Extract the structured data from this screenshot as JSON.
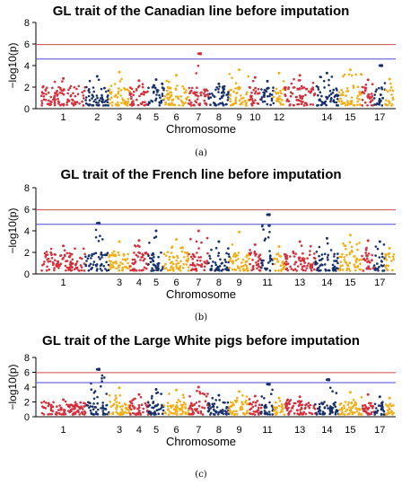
{
  "chart_data": [
    {
      "type": "scatter",
      "title": "GL trait of the Canadian line before imputation",
      "xlabel": "Chromosome",
      "ylabel": "−log10(p)",
      "caption": "(a)",
      "ylim": [
        0,
        8
      ],
      "yticks": [
        "0",
        "2",
        "4",
        "6",
        "8"
      ],
      "thresholds": [
        {
          "value": 5.95,
          "color": "#cc4a4a"
        },
        {
          "value": 4.6,
          "color": "#4a4acc"
        }
      ],
      "chromosome_labels": [
        "1",
        "2",
        "3",
        "4",
        "5",
        "6",
        "7",
        "8",
        "9",
        "10",
        "12",
        "14",
        "15",
        "17"
      ],
      "series": [
        {
          "chromosome": "1",
          "max": 2.8
        },
        {
          "chromosome": "2",
          "max": 3.0
        },
        {
          "chromosome": "3",
          "max": 3.4
        },
        {
          "chromosome": "4",
          "max": 2.6
        },
        {
          "chromosome": "5",
          "max": 2.7
        },
        {
          "chromosome": "6",
          "max": 3.1
        },
        {
          "chromosome": "7",
          "max": 5.1
        },
        {
          "chromosome": "8",
          "max": 2.3
        },
        {
          "chromosome": "9",
          "max": 3.6
        },
        {
          "chromosome": "10",
          "max": 2.9
        },
        {
          "chromosome": "12",
          "max": 3.3
        },
        {
          "chromosome": "14",
          "max": 3.3
        },
        {
          "chromosome": "15",
          "max": 3.6
        },
        {
          "chromosome": "17",
          "max": 4.0
        }
      ],
      "highlights": [
        {
          "chromosome": "7",
          "y": 5.1
        },
        {
          "chromosome": "17",
          "y": 4.0
        }
      ]
    },
    {
      "type": "scatter",
      "title": "GL trait of the French line before imputation",
      "xlabel": "Chromosome",
      "ylabel": "−log10(p)",
      "caption": "(b)",
      "ylim": [
        0,
        8
      ],
      "yticks": [
        "0",
        "2",
        "4",
        "6",
        "8"
      ],
      "thresholds": [
        {
          "value": 5.95,
          "color": "#cc4a4a"
        },
        {
          "value": 4.6,
          "color": "#4a4acc"
        }
      ],
      "chromosome_labels": [
        "1",
        "3",
        "4",
        "5",
        "6",
        "7",
        "8",
        "9",
        "11",
        "13",
        "14",
        "15",
        "17"
      ],
      "series": [
        {
          "chromosome": "1",
          "max": 2.6
        },
        {
          "chromosome": "2",
          "max": 4.7
        },
        {
          "chromosome": "3",
          "max": 3.0
        },
        {
          "chromosome": "4",
          "max": 3.1
        },
        {
          "chromosome": "5",
          "max": 4.0
        },
        {
          "chromosome": "6",
          "max": 3.2
        },
        {
          "chromosome": "7",
          "max": 4.0
        },
        {
          "chromosome": "8",
          "max": 3.0
        },
        {
          "chromosome": "9",
          "max": 3.9
        },
        {
          "chromosome": "11",
          "max": 5.5
        },
        {
          "chromosome": "13",
          "max": 3.0
        },
        {
          "chromosome": "14",
          "max": 3.3
        },
        {
          "chromosome": "15",
          "max": 3.6
        },
        {
          "chromosome": "17",
          "max": 3.0
        }
      ],
      "highlights": [
        {
          "chromosome": "2",
          "y": 4.7
        },
        {
          "chromosome": "11",
          "y": 5.5
        },
        {
          "chromosome": "11",
          "y": 4.5
        }
      ]
    },
    {
      "type": "scatter",
      "title": "GL trait of the Large White pigs before imputation",
      "xlabel": "Chromosome",
      "ylabel": "−log10(p)",
      "caption": "(c)",
      "ylim": [
        0,
        8
      ],
      "yticks": [
        "0",
        "2",
        "4",
        "6",
        "8"
      ],
      "thresholds": [
        {
          "value": 5.95,
          "color": "#cc4a4a"
        },
        {
          "value": 4.6,
          "color": "#4a4acc"
        }
      ],
      "chromosome_labels": [
        "1",
        "3",
        "4",
        "5",
        "6",
        "7",
        "8",
        "9",
        "11",
        "13",
        "14",
        "15",
        "17"
      ],
      "series": [
        {
          "chromosome": "1",
          "max": 2.3
        },
        {
          "chromosome": "2",
          "max": 6.4
        },
        {
          "chromosome": "3",
          "max": 3.9
        },
        {
          "chromosome": "4",
          "max": 3.0
        },
        {
          "chromosome": "5",
          "max": 3.7
        },
        {
          "chromosome": "6",
          "max": 3.6
        },
        {
          "chromosome": "7",
          "max": 4.0
        },
        {
          "chromosome": "8",
          "max": 2.9
        },
        {
          "chromosome": "9",
          "max": 3.4
        },
        {
          "chromosome": "11",
          "max": 4.4
        },
        {
          "chromosome": "13",
          "max": 2.7
        },
        {
          "chromosome": "14",
          "max": 5.0
        },
        {
          "chromosome": "15",
          "max": 3.3
        },
        {
          "chromosome": "17",
          "max": 2.7
        }
      ],
      "highlights": [
        {
          "chromosome": "2",
          "y": 6.4
        },
        {
          "chromosome": "14",
          "y": 5.0
        },
        {
          "chromosome": "11",
          "y": 4.4
        }
      ]
    }
  ],
  "palette": [
    "#d62f3c",
    "#17306b",
    "#f2ae14"
  ]
}
